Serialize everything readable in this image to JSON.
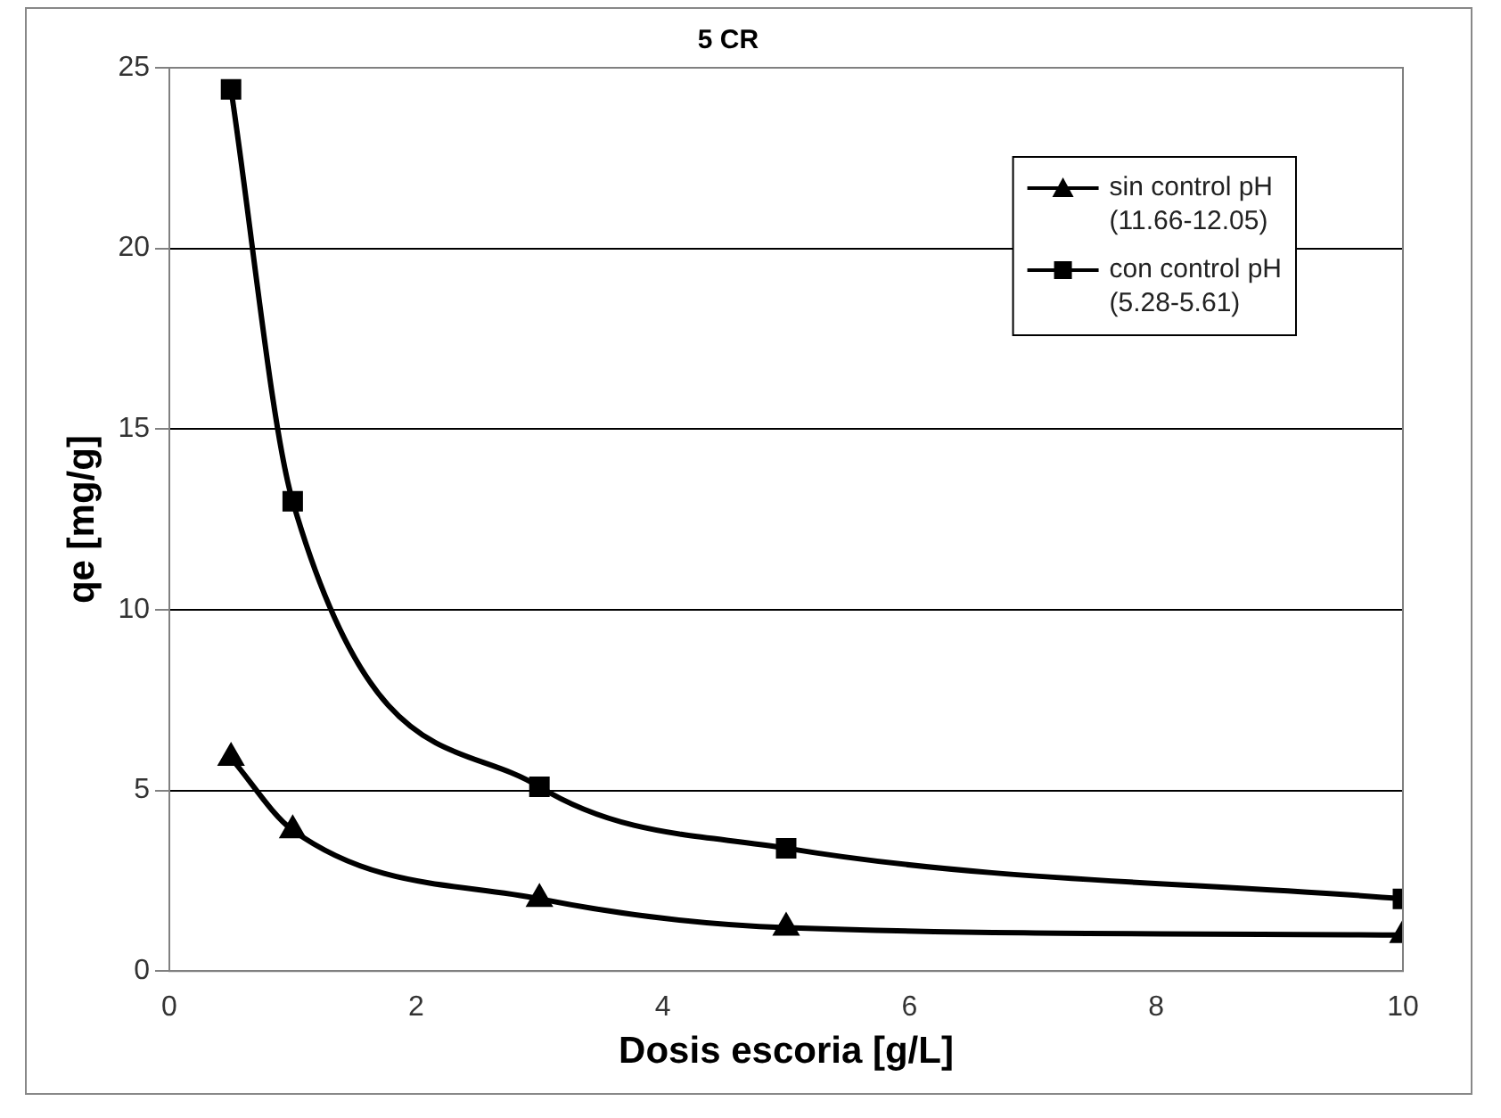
{
  "chart_data": {
    "type": "line",
    "title": "5 CR",
    "xlabel": "Dosis escoria [g/L]",
    "ylabel": "qe [mg/g]",
    "x": [
      0.5,
      1,
      3,
      5,
      10
    ],
    "series": [
      {
        "name": "sin control pH\n(11.66-12.05)",
        "color": "#000000",
        "marker": "triangle",
        "values": [
          5.9,
          3.9,
          2.0,
          1.2,
          1.0
        ]
      },
      {
        "name": "con control pH\n(5.28-5.61)",
        "color": "#000000",
        "marker": "square",
        "values": [
          24.4,
          13.0,
          5.1,
          3.4,
          2.0
        ]
      }
    ],
    "xlim": [
      0,
      10
    ],
    "xticks": [
      0,
      2,
      4,
      6,
      8,
      10
    ],
    "ylim": [
      0,
      25
    ],
    "yticks": [
      0,
      5,
      10,
      15,
      20,
      25
    ],
    "grid": "y",
    "legend": "top right",
    "line_style": "solid"
  }
}
